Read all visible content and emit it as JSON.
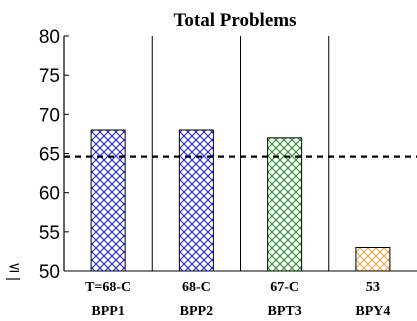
{
  "chart_data": {
    "type": "bar",
    "title": "Total Problems",
    "ylabel": "≤",
    "ylim": [
      50,
      80
    ],
    "yticks": [
      50,
      55,
      60,
      65,
      70,
      75,
      80
    ],
    "categories": [
      "BPP1",
      "BPP2",
      "BPT3",
      "BPY4"
    ],
    "value_labels": [
      "T=68-C",
      "68-C",
      "67-C",
      "53"
    ],
    "values": [
      68,
      68,
      67,
      53
    ],
    "colors": [
      "#1a1ad6",
      "#1a1ad6",
      "#1f8a1f",
      "#f0a040"
    ],
    "fill_pattern": "crosshatch",
    "reference_line": {
      "value": 64.6,
      "style": "dashed"
    },
    "grid": false,
    "column_dividers": true
  }
}
